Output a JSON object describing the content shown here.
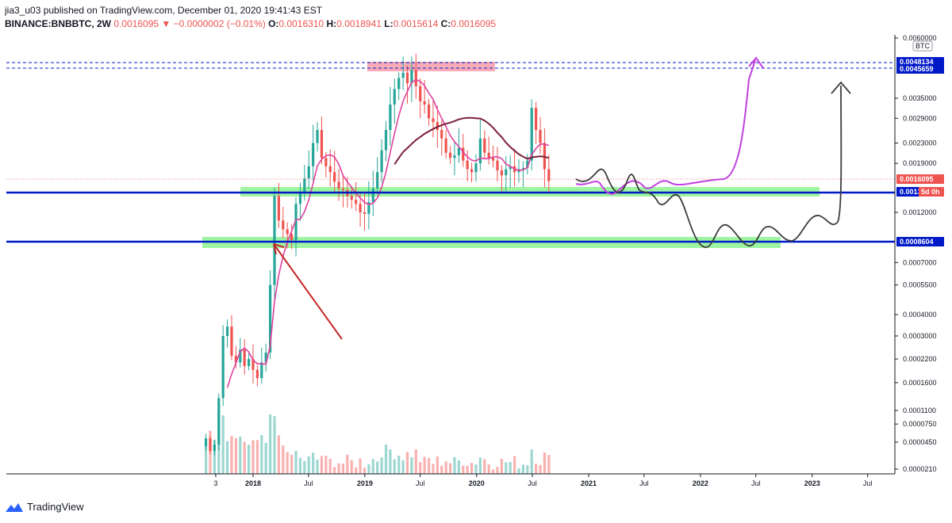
{
  "header": {
    "line1": "jia3_u03 published on TradingView.com, December 01, 2020 19:41:43 EST",
    "symbol": "BINANCE:BNBBTC, 2W",
    "last": "0.0016095",
    "change": "−0.0000002 (−0.01%)",
    "open_label": "O:",
    "open": "0.0016310",
    "high_label": "H:",
    "high": "0.0018941",
    "low_label": "L:",
    "low": "0.0015614",
    "close_label": "C:",
    "close": "0.0016095"
  },
  "footer": {
    "brand": "TradingView"
  },
  "colors": {
    "up": "#26a69a",
    "down": "#ef5350",
    "ma": "#e040a0",
    "ma_long": "#7b1f3a",
    "support": "#0019c8",
    "zone": "#69f06e",
    "resistance_zone": "#f48fa0",
    "forecast_purple": "#c040e0",
    "forecast_gray": "#3d3d3d",
    "arrow_red": "#c62828"
  },
  "chart_data": {
    "type": "candlestick",
    "scale": "log",
    "currency": "BTC",
    "x_ticks": [
      "3",
      "2018",
      "Jul",
      "2019",
      "Jul",
      "2020",
      "Jul",
      "2021",
      "Jul",
      "2022",
      "Jul",
      "2023",
      "Jul"
    ],
    "y_ticks": [
      "0.0060000",
      "0.0035000",
      "0.0029000",
      "0.0023000",
      "0.0019000",
      "0.0012000",
      "0.0007000",
      "0.0005500",
      "0.0004000",
      "0.0003000",
      "0.0002200",
      "0.0001600",
      "0.0001100",
      "0.0000750",
      "0.0000450",
      "0.0000210"
    ],
    "price_tags": [
      {
        "label": "0.0048134",
        "color": "#0019c8"
      },
      {
        "label": "0.0045659",
        "color": "#0019c8"
      },
      {
        "label": "0.0016095",
        "color": "#ef5350"
      },
      {
        "label": "0.0013",
        "color": "#0019c8"
      },
      {
        "label": "0.0008604",
        "color": "#0019c8"
      }
    ],
    "countdown": "5d 0h",
    "start": "2017-07-31",
    "interval_days": 14,
    "closes": [
      5e-05,
      3.5e-05,
      4.2e-05,
      0.00013,
      0.0003,
      0.00034,
      0.00023,
      0.00021,
      0.00025,
      0.0002,
      0.00022,
      0.00019,
      0.00017,
      0.00021,
      0.00024,
      0.00055,
      0.0014,
      0.0011,
      0.001,
      0.00095,
      0.00089,
      0.0013,
      0.00145,
      0.00165,
      0.00185,
      0.0023,
      0.0026,
      0.002,
      0.00185,
      0.00175,
      0.0016,
      0.0015,
      0.00148,
      0.0014,
      0.00135,
      0.0013,
      0.0012,
      0.00118,
      0.00132,
      0.0015,
      0.00175,
      0.00215,
      0.0026,
      0.0033,
      0.0038,
      0.0042,
      0.0044,
      0.004,
      0.0045,
      0.0039,
      0.0034,
      0.0033,
      0.0029,
      0.0028,
      0.0026,
      0.0024,
      0.0021,
      0.002,
      0.00205,
      0.0022,
      0.00195,
      0.0018,
      0.00175,
      0.0019,
      0.0024,
      0.0021,
      0.002,
      0.00195,
      0.00178,
      0.0017,
      0.0018,
      0.00185,
      0.00175,
      0.0018,
      0.00182,
      0.00195,
      0.0032,
      0.0026,
      0.0023,
      0.0018,
      0.0016095
    ]
  }
}
